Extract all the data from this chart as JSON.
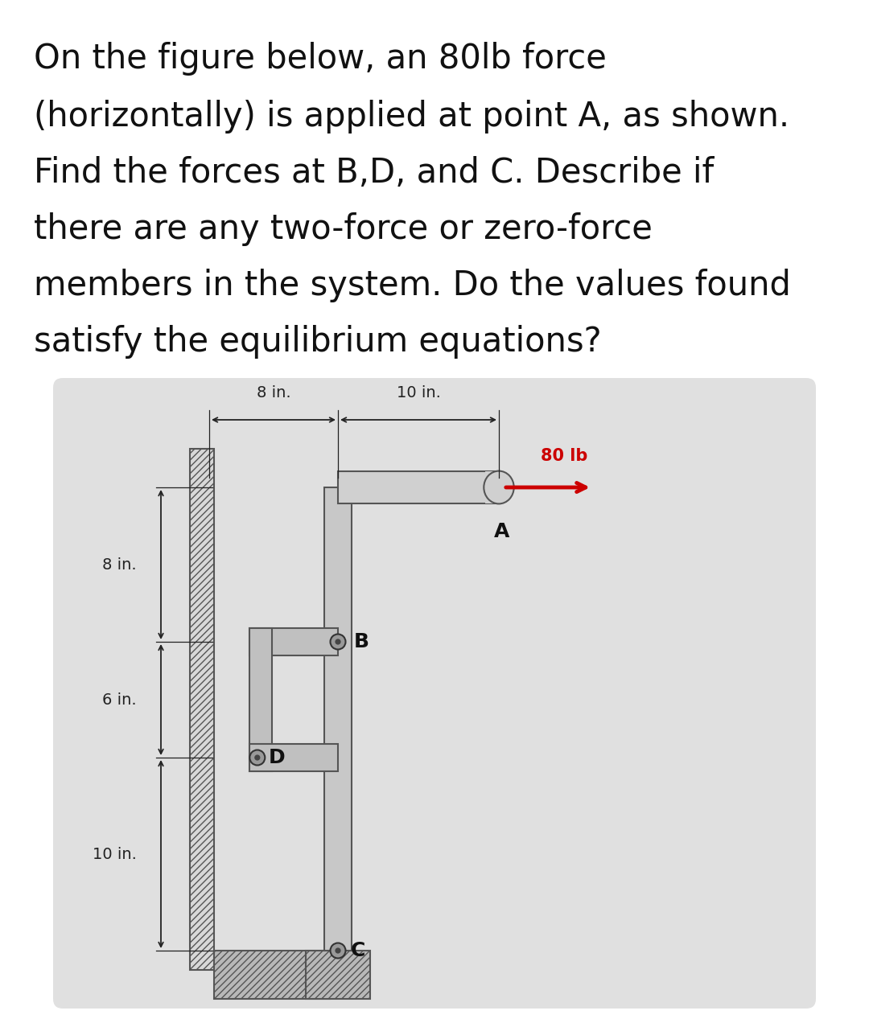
{
  "bg_color": "#ffffff",
  "text_lines": [
    "On the figure below, an 80lb force",
    "(horizontally) is applied at point A, as shown.",
    "Find the forces at B,D, and C. Describe if",
    "there are any two-force or zero-force",
    "members in the system. Do the values found",
    "satisfy the equilibrium equations?"
  ],
  "text_fontsize": 30,
  "text_color": "#111111",
  "panel_bg": "#e0e0e0",
  "arrow_color": "#cc0000",
  "dim_color": "#222222",
  "bar_fc": "#c0c0c0",
  "bar_ec": "#555555",
  "pin_fc": "#888888",
  "pin_ec": "#333333",
  "gnd_fc": "#b0b0b0",
  "gnd_ec": "#555555",
  "label_color": "#111111"
}
